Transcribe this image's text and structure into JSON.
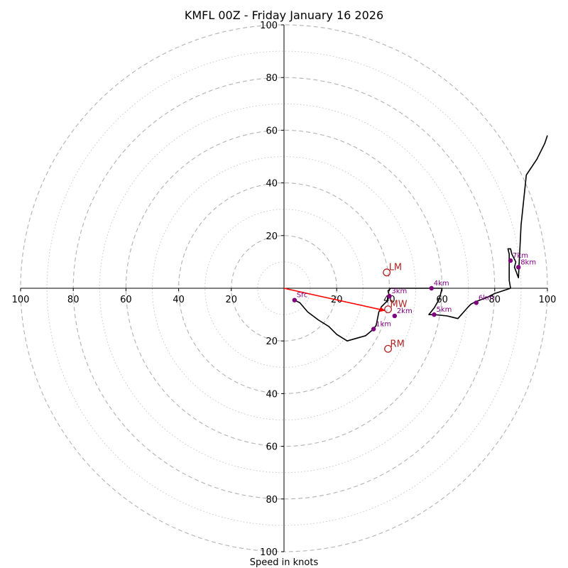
{
  "chart_data": {
    "type": "line",
    "title": "KMFL 00Z - Friday January 16 2026",
    "xlabel": "Speed in knots",
    "ylabel": "",
    "xlim": [
      -100,
      100
    ],
    "ylim": [
      -100,
      100
    ],
    "x_ticks": [
      -100,
      -80,
      -60,
      -40,
      -20,
      20,
      40,
      60,
      80,
      100
    ],
    "x_tick_labels": [
      "100",
      "80",
      "60",
      "40",
      "20",
      "20",
      "40",
      "60",
      "80",
      "100"
    ],
    "y_ticks": [
      100,
      80,
      60,
      40,
      20,
      -20,
      -40,
      -60,
      -80,
      -100
    ],
    "y_tick_labels": [
      "100",
      "80",
      "60",
      "40",
      "20",
      "20",
      "40",
      "60",
      "80",
      "100"
    ],
    "ring_major": [
      20,
      40,
      60,
      80,
      100
    ],
    "ring_minor": [
      10,
      30,
      50,
      70,
      90
    ],
    "hodograph": {
      "color": "#000000",
      "u": [
        4,
        6,
        9,
        13,
        17,
        20,
        24,
        31,
        34,
        35,
        36,
        37,
        39,
        40,
        39.5,
        40.5,
        41,
        44,
        48,
        47,
        47,
        50,
        55,
        60,
        59,
        57,
        55,
        57,
        62,
        66,
        70,
        71,
        73,
        77,
        80,
        86,
        86,
        85.5,
        85.5,
        85.5,
        85,
        86,
        86.5,
        88,
        87.5,
        89,
        90,
        92,
        96,
        99,
        100
      ],
      "v": [
        -4.5,
        -5.5,
        -9,
        -12,
        -14.5,
        -17.5,
        -20,
        -18,
        -15.5,
        -14,
        -9,
        -7,
        -5,
        -3,
        -1,
        0,
        0,
        0,
        0,
        0,
        0,
        0,
        0,
        0,
        -4,
        -7.5,
        -10,
        -10,
        -10.5,
        -11.5,
        -7,
        -6,
        -5,
        -3.5,
        -2,
        0,
        0,
        3,
        8,
        13,
        15,
        15,
        13,
        10,
        8,
        4,
        24,
        43,
        49,
        55,
        58
      ]
    },
    "height_markers": {
      "color": "#800080",
      "points": [
        {
          "label": "Sfc",
          "u": 4,
          "v": -4.5
        },
        {
          "label": "1km",
          "u": 34,
          "v": -15.5
        },
        {
          "label": "2km",
          "u": 42,
          "v": -10.5
        },
        {
          "label": "3km",
          "u": 40,
          "v": -3
        },
        {
          "label": "4km",
          "u": 56,
          "v": 0
        },
        {
          "label": "5km",
          "u": 57,
          "v": -10
        },
        {
          "label": "6km",
          "u": 73,
          "v": -5.5
        },
        {
          "label": "7km",
          "u": 86,
          "v": 10.5
        },
        {
          "label": "8km",
          "u": 89,
          "v": 8
        }
      ]
    },
    "storm_motion": [
      {
        "label": "LM",
        "u": 39,
        "v": 6,
        "color": "#b22222"
      },
      {
        "label": "MW",
        "u": 39.5,
        "v": -8,
        "color": "#b22222"
      },
      {
        "label": "RM",
        "u": 39.5,
        "v": -23,
        "color": "#b22222"
      }
    ],
    "shear_vector": {
      "u1": 0,
      "v1": 0,
      "u2": 38.5,
      "v2": -8.5,
      "color": "#ff0000"
    },
    "grid": true
  }
}
